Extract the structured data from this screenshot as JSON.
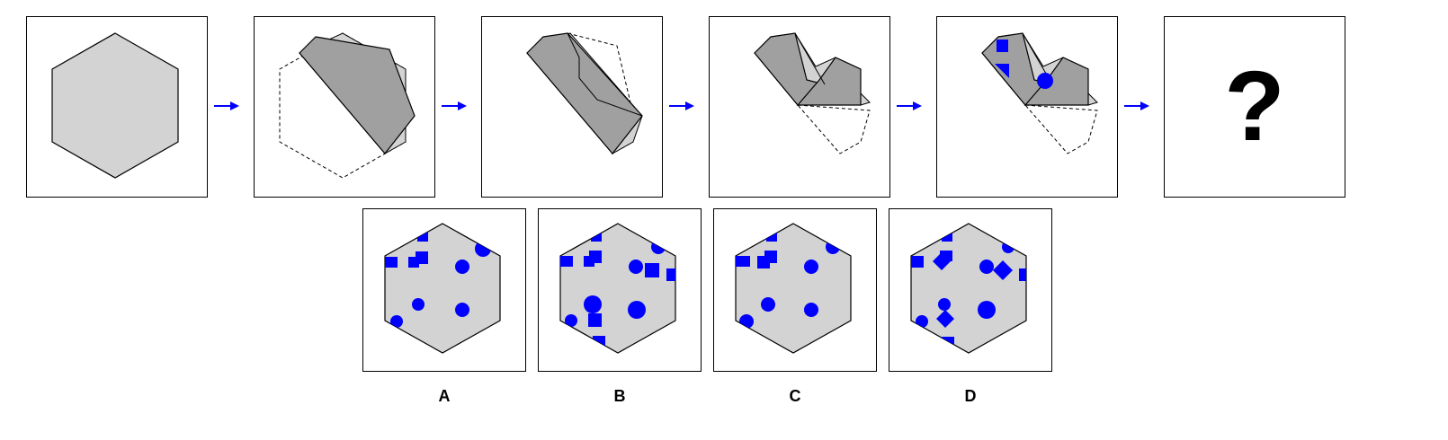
{
  "puzzle": {
    "question_mark": "?",
    "colors": {
      "paper": "#d3d3d3",
      "folded": "#a0a0a0",
      "mark": "#0000ff",
      "arrow": "#0000ff",
      "outline": "#000000"
    },
    "steps": [
      {
        "name": "hexagon-paper"
      },
      {
        "name": "first-fold"
      },
      {
        "name": "second-fold"
      },
      {
        "name": "third-fold"
      },
      {
        "name": "punched-holes"
      }
    ],
    "options": [
      {
        "label": "A"
      },
      {
        "label": "B"
      },
      {
        "label": "C"
      },
      {
        "label": "D"
      }
    ]
  }
}
